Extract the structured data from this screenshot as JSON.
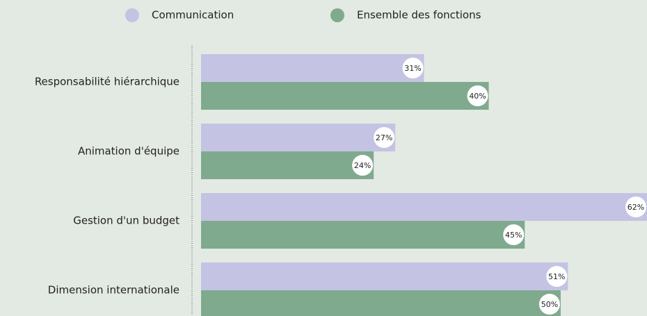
{
  "chart_data": {
    "type": "bar",
    "orientation": "horizontal",
    "categories": [
      "Responsabilité hiérarchique",
      "Animation d'équipe",
      "Gestion d'un budget",
      "Dimension internationale"
    ],
    "series": [
      {
        "name": "Communication",
        "color": "#c4c3e3",
        "values": [
          31,
          27,
          62,
          51
        ],
        "value_labels": [
          "31%",
          "27%",
          "62%",
          "51%"
        ]
      },
      {
        "name": "Ensemble des fonctions",
        "color": "#7faa8e",
        "values": [
          40,
          24,
          45,
          50
        ],
        "value_labels": [
          "40%",
          "24%",
          "45%",
          "50%"
        ]
      }
    ]
  }
}
